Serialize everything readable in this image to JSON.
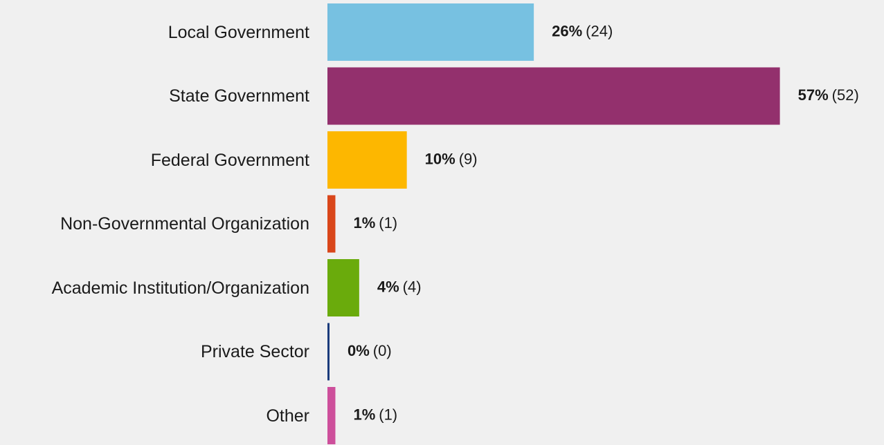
{
  "chart_data": {
    "type": "hbar",
    "categories": [
      "Local Government",
      "State Government",
      "Federal Government",
      "Non-Governmental Organization",
      "Academic Institution/Organization",
      "Private Sector",
      "Other"
    ],
    "values": [
      26,
      57,
      10,
      1,
      4,
      0,
      1
    ],
    "value_labels": [
      "26%",
      "57%",
      "10%",
      "1%",
      "4%",
      "0%",
      "1%"
    ],
    "counts": [
      24,
      52,
      9,
      1,
      4,
      0,
      1
    ],
    "count_labels": [
      "(24)",
      "(52)",
      "(9)",
      "(1)",
      "(4)",
      "(0)",
      "(1)"
    ],
    "colors": [
      "#77c1e1",
      "#93306d",
      "#fdb700",
      "#d9461a",
      "#6aab0c",
      "#1a3b7c",
      "#cd4f9b"
    ],
    "xlim": [
      0,
      60
    ]
  }
}
